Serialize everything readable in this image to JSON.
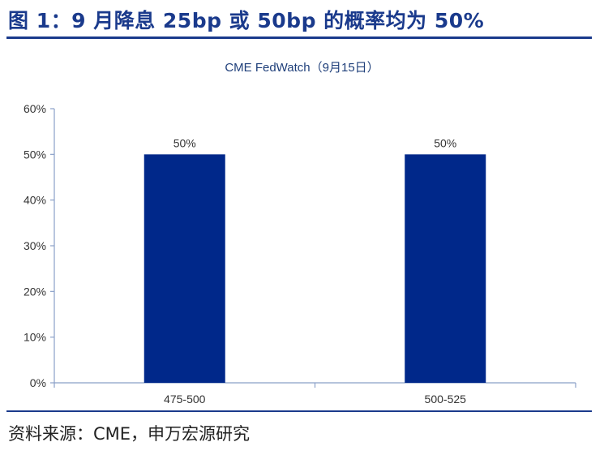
{
  "figure": {
    "title": "图 1：9 月降息 25bp 或 50bp 的概率均为 50%",
    "source": "资料来源：CME，申万宏源研究"
  },
  "colors": {
    "bar": "#00288a",
    "heading": "#1a3a8c",
    "axis": "#8aa0c8",
    "tick_text": "#333333"
  },
  "chart_data": {
    "type": "bar",
    "title": "CME FedWatch（9月15日）",
    "categories": [
      "475-500",
      "500-525"
    ],
    "values": [
      50,
      50
    ],
    "value_labels": [
      "50%",
      "50%"
    ],
    "xlabel": "",
    "ylabel": "",
    "ylim": [
      0,
      60
    ],
    "yticks": [
      0,
      10,
      20,
      30,
      40,
      50,
      60
    ],
    "ytick_labels": [
      "0%",
      "10%",
      "20%",
      "30%",
      "40%",
      "50%",
      "60%"
    ],
    "grid": false,
    "legend": "none"
  }
}
